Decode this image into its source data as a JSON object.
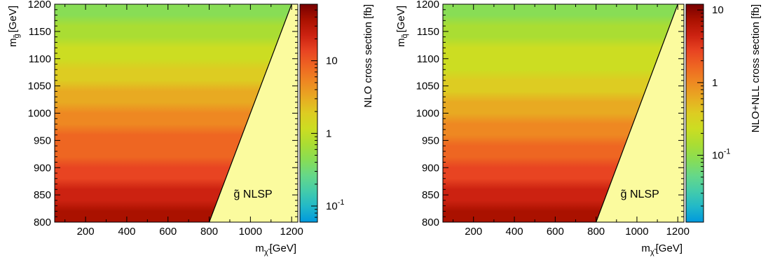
{
  "chart_data": [
    {
      "type": "heatmap",
      "x": {
        "label_main": "m",
        "label_sub": "χ̃",
        "label_unit": "[GeV]",
        "range": [
          50,
          1230
        ],
        "ticks": [
          200,
          400,
          600,
          800,
          1000,
          1200
        ],
        "tick_labels": [
          "200",
          "400",
          "600",
          "800",
          "1000",
          "1200"
        ]
      },
      "y": {
        "label_main": "m",
        "label_sub": "g̃",
        "label_unit": "[GeV]",
        "range": [
          800,
          1200
        ],
        "ticks": [
          800,
          850,
          900,
          950,
          1000,
          1050,
          1100,
          1150,
          1200
        ],
        "tick_labels": [
          "800",
          "850",
          "900",
          "950",
          "1000",
          "1050",
          "1100",
          "1150",
          "1200"
        ]
      },
      "boundary": {
        "x": [
          800,
          1200
        ],
        "y": [
          800,
          1200
        ]
      },
      "excluded_region_label": "g̃ NLSP",
      "excluded_region_color": "#fbfb9e",
      "colorbar": {
        "label": "NLO cross section [fb]",
        "scale": "log",
        "range": [
          0.06,
          60
        ],
        "tick_labels": [
          {
            "value": 0.1,
            "text": "10",
            "sup": "-1"
          },
          {
            "value": 1,
            "text": "1",
            "sup": ""
          },
          {
            "value": 10,
            "text": "10",
            "sup": ""
          }
        ]
      },
      "value_bottom": 46,
      "value_top": 0.35
    },
    {
      "type": "heatmap",
      "x": {
        "label_main": "m",
        "label_sub": "χ̃",
        "label_unit": "[GeV]",
        "range": [
          50,
          1230
        ],
        "ticks": [
          200,
          400,
          600,
          800,
          1000,
          1200
        ],
        "tick_labels": [
          "200",
          "400",
          "600",
          "800",
          "1000",
          "1200"
        ]
      },
      "y": {
        "label_main": "m",
        "label_sub": "q̃",
        "label_unit": "[GeV]",
        "range": [
          800,
          1200
        ],
        "ticks": [
          800,
          850,
          900,
          950,
          1000,
          1050,
          1100,
          1150,
          1200
        ],
        "tick_labels": [
          "800",
          "850",
          "900",
          "950",
          "1000",
          "1050",
          "1100",
          "1150",
          "1200"
        ]
      },
      "boundary": {
        "x": [
          800,
          1200
        ],
        "y": [
          800,
          1200
        ]
      },
      "excluded_region_label": "g̃ NLSP",
      "excluded_region_color": "#fbfb9e",
      "colorbar": {
        "label": "NLO+NLL cross section [fb]",
        "scale": "log",
        "range": [
          0.012,
          12
        ],
        "tick_labels": [
          {
            "value": 0.1,
            "text": "10",
            "sup": "-1"
          },
          {
            "value": 1,
            "text": "1",
            "sup": ""
          },
          {
            "value": 10,
            "text": "10",
            "sup": ""
          }
        ]
      },
      "value_bottom": 8.5,
      "value_top": 0.07
    }
  ],
  "colormap": [
    "#0099dd",
    "#22b8c8",
    "#44ccaa",
    "#66d888",
    "#88dd55",
    "#aadd33",
    "#ccdd22",
    "#ddcc22",
    "#e8aa22",
    "#ee8822",
    "#ee6622",
    "#e84422",
    "#cc2211",
    "#aa1100",
    "#770000"
  ]
}
